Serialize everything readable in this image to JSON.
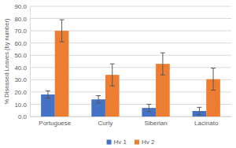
{
  "chart_data": {
    "type": "bar",
    "y_label": "% Diseased Leaves (by number)",
    "categories": [
      "Portuguese",
      "Curly",
      "Siberian",
      "Lacinato"
    ],
    "series": [
      {
        "name": "Hv 1",
        "color": "#4472c4",
        "values": [
          18,
          14,
          7,
          4.5
        ],
        "errors": [
          3,
          3,
          3,
          3
        ]
      },
      {
        "name": "Hv 2",
        "color": "#ed7d31",
        "values": [
          70,
          34,
          43,
          30.5
        ],
        "errors": [
          9,
          9,
          9,
          9
        ]
      }
    ],
    "ylim": [
      0,
      90
    ],
    "yticks": [
      {
        "value": 0,
        "label": "0.0"
      },
      {
        "value": 10,
        "label": "10.0"
      },
      {
        "value": 20,
        "label": "20.0"
      },
      {
        "value": 30,
        "label": "30.0"
      },
      {
        "value": 40,
        "label": "40.0"
      },
      {
        "value": 50,
        "label": "50.0"
      },
      {
        "value": 60,
        "label": "60.0"
      },
      {
        "value": 70,
        "label": "70.0"
      },
      {
        "value": 80,
        "label": "80.0"
      },
      {
        "value": 90,
        "label": "90.0"
      }
    ],
    "grid": true,
    "legend": "bottom"
  }
}
